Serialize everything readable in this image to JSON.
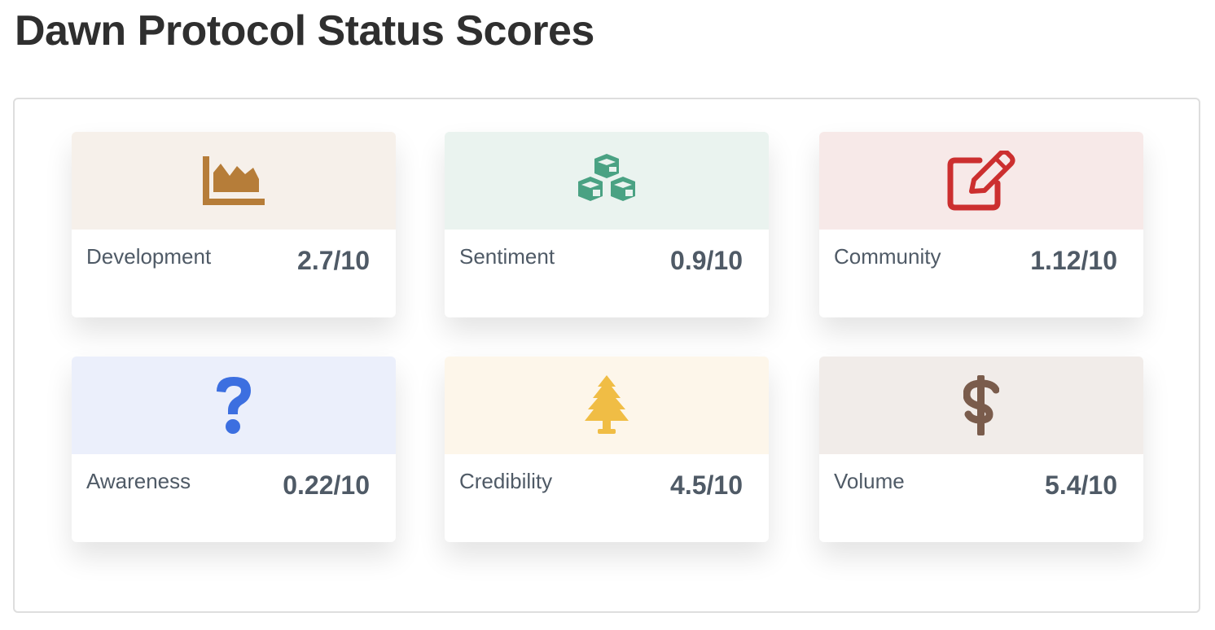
{
  "page": {
    "title": "Dawn Protocol Status Scores"
  },
  "cards": [
    {
      "label": "Development",
      "score": "2.7/10",
      "icon": "area-chart-icon",
      "icon_color": "#b67d39",
      "bg_color": "#f6f0ea"
    },
    {
      "label": "Sentiment",
      "score": "0.9/10",
      "icon": "cubes-icon",
      "icon_color": "#4aa283",
      "bg_color": "#eaf3ef"
    },
    {
      "label": "Community",
      "score": "1.12/10",
      "icon": "edit-icon",
      "icon_color": "#cc2f2f",
      "bg_color": "#f7e9e8"
    },
    {
      "label": "Awareness",
      "score": "0.22/10",
      "icon": "question-icon",
      "icon_color": "#3c6fe0",
      "bg_color": "#ebeffb"
    },
    {
      "label": "Credibility",
      "score": "4.5/10",
      "icon": "tree-icon",
      "icon_color": "#f0bd45",
      "bg_color": "#fdf6ea"
    },
    {
      "label": "Volume",
      "score": "5.4/10",
      "icon": "dollar-icon",
      "icon_color": "#7a5c4c",
      "bg_color": "#f1ece9"
    }
  ]
}
